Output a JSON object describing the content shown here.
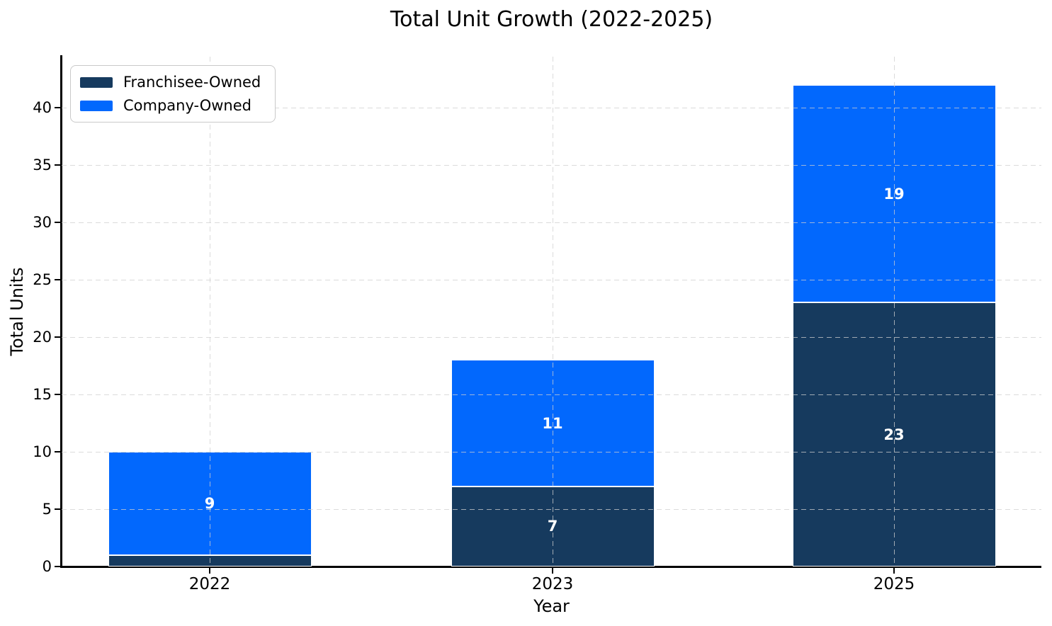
{
  "chart_data": {
    "type": "bar",
    "stacked": true,
    "title": "Total Unit Growth (2022-2025)",
    "xlabel": "Year",
    "ylabel": "Total Units",
    "categories": [
      "2022",
      "2023",
      "2025"
    ],
    "series": [
      {
        "name": "Franchisee-Owned",
        "color": "#163A5E",
        "values": [
          1,
          7,
          23
        ],
        "bar_labels": [
          "",
          "7",
          "23"
        ]
      },
      {
        "name": "Company-Owned",
        "color": "#0268FD",
        "values": [
          9,
          11,
          19
        ],
        "bar_labels": [
          "9",
          "11",
          "19"
        ]
      }
    ],
    "yticks": [
      0,
      5,
      10,
      15,
      20,
      25,
      30,
      35,
      40
    ],
    "ylim": [
      0,
      44.4
    ],
    "grid": "dashed light-gray horizontal and vertical, drawn over bars",
    "legend_position": "upper-left",
    "bar_label_color": "#ffffff",
    "axis_color": "#000000"
  }
}
